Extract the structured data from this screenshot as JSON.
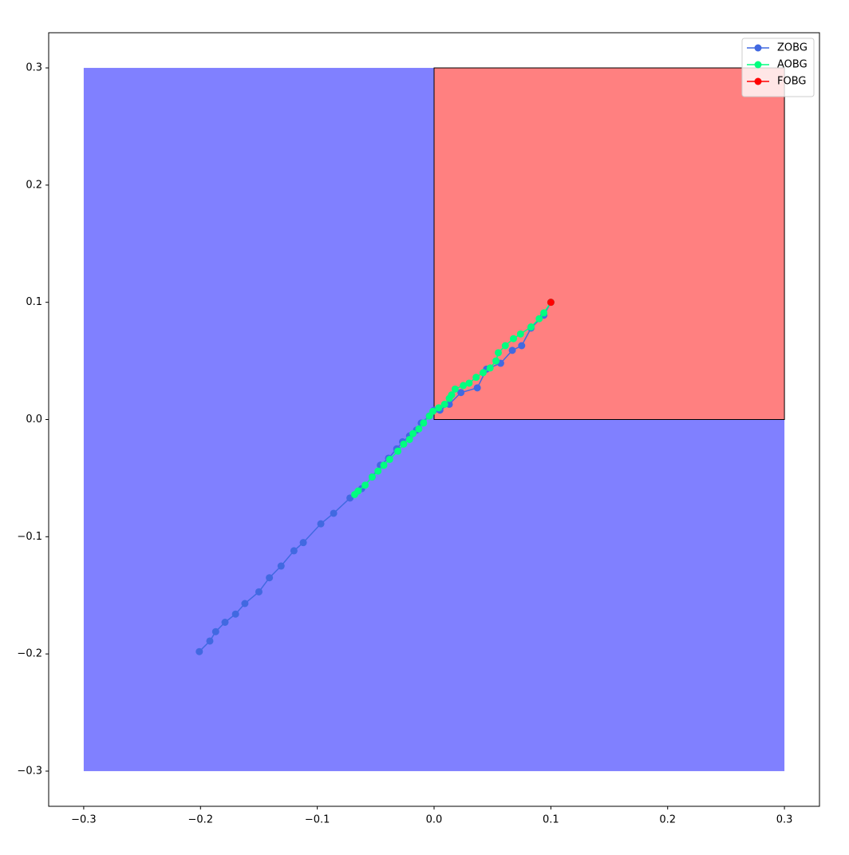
{
  "chart_data": {
    "type": "line",
    "xlim": [
      -0.33,
      0.33
    ],
    "ylim": [
      -0.33,
      0.33
    ],
    "xticks": [
      {
        "value": -0.3,
        "label": "−0.3"
      },
      {
        "value": -0.2,
        "label": "−0.2"
      },
      {
        "value": -0.1,
        "label": "−0.1"
      },
      {
        "value": 0,
        "label": "0.0"
      },
      0.1,
      0.2,
      0.3
    ],
    "yticks": [
      {
        "value": -0.3,
        "label": "−0.3"
      },
      {
        "value": -0.2,
        "label": "−0.2"
      },
      {
        "value": -0.1,
        "label": "−0.1"
      },
      {
        "value": 0,
        "label": "0.0"
      },
      0.1,
      0.2,
      0.3
    ],
    "grid": false,
    "legend": "upper right",
    "regions": [
      {
        "x": [
          -0.3,
          0.3
        ],
        "y": [
          -0.3,
          0.3
        ],
        "color": "#8080ff"
      },
      {
        "x": [
          0,
          0.3
        ],
        "y": [
          0,
          0.3
        ],
        "color": "#ff8080",
        "edgecolor": "#000000"
      }
    ],
    "series": [
      {
        "name": "ZOBG",
        "color": "#4169e1",
        "x": [
          -0.201,
          -0.192,
          -0.187,
          -0.179,
          -0.17,
          -0.162,
          -0.15,
          -0.141,
          -0.131,
          -0.12,
          -0.112,
          -0.097,
          -0.086,
          -0.072,
          -0.062,
          -0.053,
          -0.046,
          -0.039,
          -0.032,
          -0.027,
          -0.021,
          -0.015,
          -0.011,
          -0.004,
          0.0,
          0.005,
          0.013,
          0.023,
          0.037,
          0.045,
          0.057,
          0.067,
          0.075,
          0.083,
          0.094,
          0.1
        ],
        "values": [
          -0.198,
          -0.189,
          -0.181,
          -0.173,
          -0.166,
          -0.157,
          -0.147,
          -0.135,
          -0.125,
          -0.112,
          -0.105,
          -0.089,
          -0.08,
          -0.067,
          -0.059,
          -0.049,
          -0.039,
          -0.033,
          -0.025,
          -0.019,
          -0.014,
          -0.009,
          -0.003,
          0.003,
          0.008,
          0.008,
          0.013,
          0.023,
          0.027,
          0.043,
          0.048,
          0.059,
          0.063,
          0.078,
          0.089,
          0.1
        ]
      },
      {
        "name": "AOBG",
        "color": "#00ff7f",
        "x": [
          -0.068,
          -0.065,
          -0.059,
          -0.053,
          -0.048,
          -0.043,
          -0.038,
          -0.031,
          -0.026,
          -0.021,
          -0.018,
          -0.013,
          -0.009,
          -0.004,
          -0.001,
          0.004,
          0.009,
          0.013,
          0.015,
          0.018,
          0.025,
          0.03,
          0.036,
          0.042,
          0.048,
          0.053,
          0.055,
          0.061,
          0.068,
          0.074,
          0.083,
          0.09,
          0.094,
          0.1
        ],
        "values": [
          -0.064,
          -0.061,
          -0.056,
          -0.049,
          -0.044,
          -0.039,
          -0.034,
          -0.027,
          -0.021,
          -0.017,
          -0.012,
          -0.008,
          -0.003,
          0.003,
          0.007,
          0.01,
          0.013,
          0.018,
          0.021,
          0.026,
          0.029,
          0.031,
          0.036,
          0.04,
          0.044,
          0.05,
          0.057,
          0.063,
          0.069,
          0.073,
          0.079,
          0.086,
          0.091,
          0.1
        ]
      },
      {
        "name": "FOBG",
        "color": "#ff0000",
        "x": [
          0.1
        ],
        "values": [
          0.1
        ]
      }
    ]
  }
}
